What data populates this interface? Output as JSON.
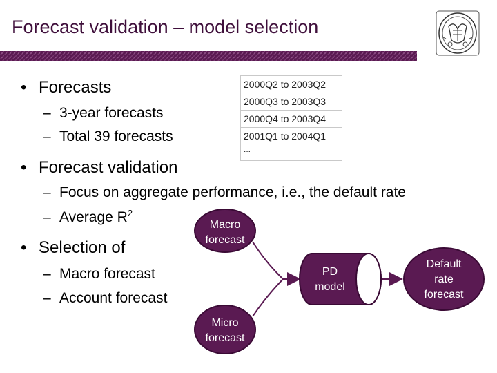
{
  "title": "Forecast validation – model selection",
  "bullets": {
    "forecasts": "Forecasts",
    "forecasts_sub1": "3-year forecasts",
    "forecasts_sub2": "Total 39 forecasts",
    "validation": "Forecast validation",
    "validation_sub1": "Focus on aggregate performance, i.e., the default rate",
    "validation_sub2": "Average R",
    "validation_sub2_sup": "2",
    "selection": "Selection of",
    "selection_sub1": "Macro forecast",
    "selection_sub2": "Account forecast"
  },
  "dash": "–",
  "bullet_char": "•",
  "forecast_table": {
    "rows": [
      "2000Q2 to 2003Q2",
      "2000Q3 to 2003Q3",
      "2000Q4 to 2003Q4",
      "2001Q1 to 2004Q1"
    ],
    "more": "..."
  },
  "diagram": {
    "macro_line1": "Macro",
    "macro_line2": "forecast",
    "micro_line1": "Micro",
    "micro_line2": "forecast",
    "pd_line1": "PD",
    "pd_line2": "model",
    "default_line1": "Default",
    "default_line2": "rate",
    "default_line3": "forecast",
    "node_fill": "#5a1a52",
    "node_stroke": "#3a0a35",
    "arrow_color": "#5a1a52"
  },
  "colors": {
    "title": "#3f0f3b",
    "accent": "#5a1a52"
  }
}
